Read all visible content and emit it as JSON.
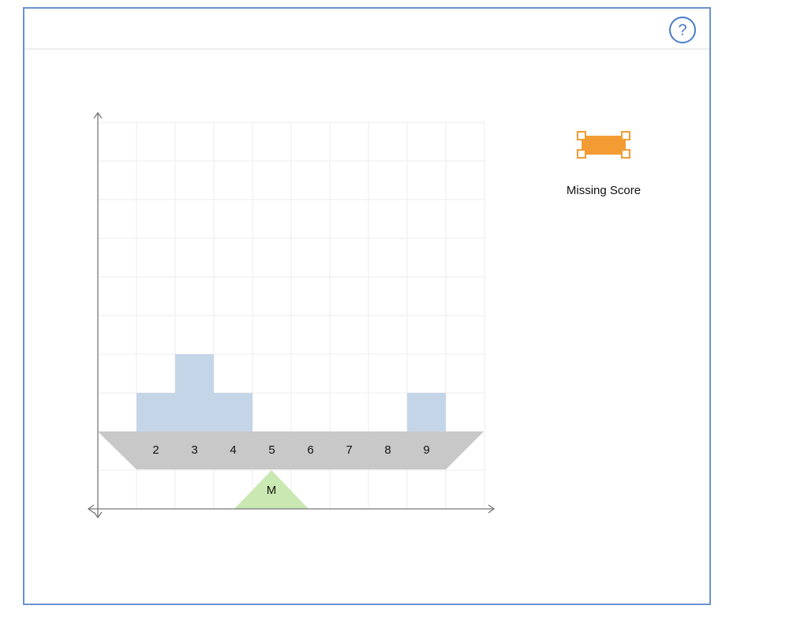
{
  "help_button": "?",
  "beam": {
    "labels": [
      2,
      3,
      4,
      5,
      6,
      7,
      8,
      9
    ],
    "stack_counts": [
      1,
      2,
      1,
      0,
      0,
      0,
      0,
      1
    ]
  },
  "fulcrum": {
    "label": "M"
  },
  "tool": {
    "label": "Missing Score"
  }
}
